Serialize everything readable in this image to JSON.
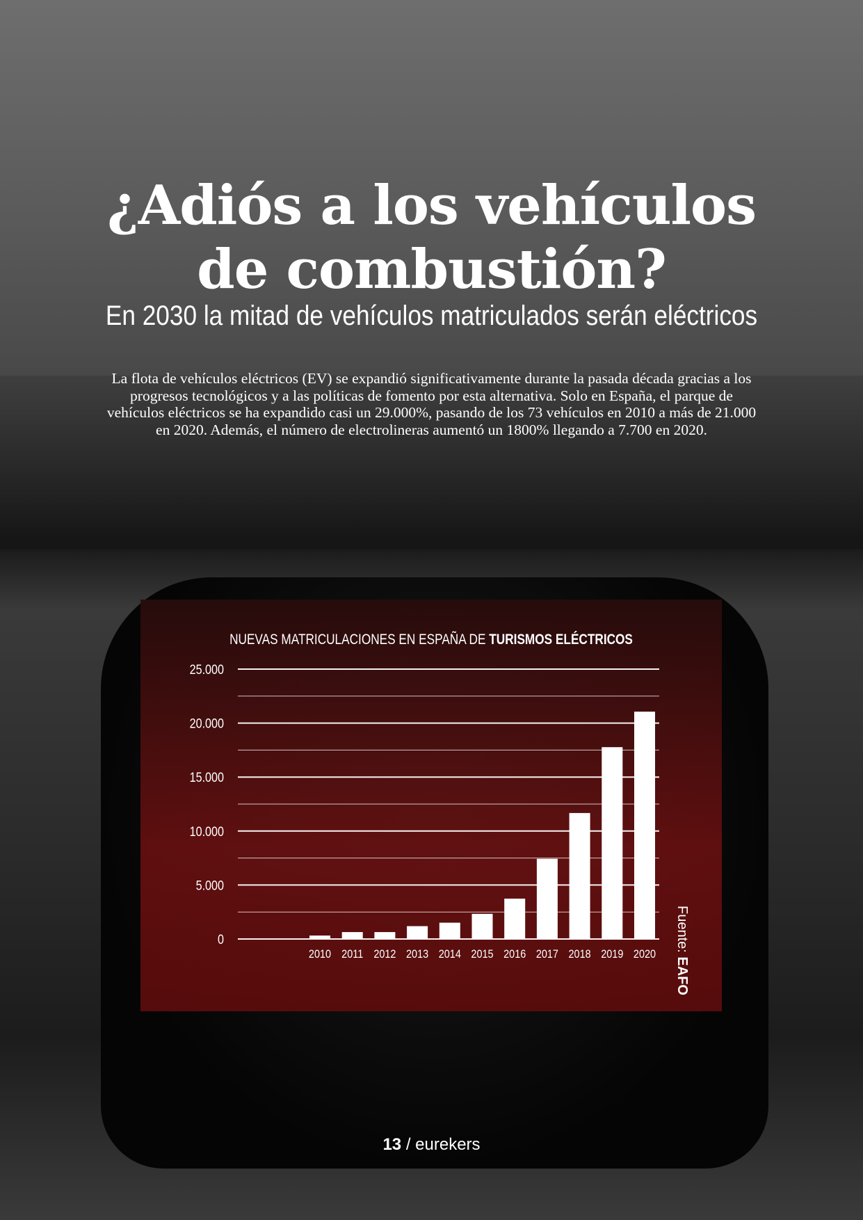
{
  "headline": {
    "line1": "¿Adiós a los vehículos",
    "line2": "de combustión?"
  },
  "subtitle": "En 2030 la mitad de vehículos matriculados serán eléctricos",
  "paragraph": "La flota de vehículos eléctricos (EV) se expandió significativamente durante la pasada década gracias a los progresos tecnológicos y a las políticas de fomento por esta alternativa. Solo en España, el parque de vehículos eléctricos se ha expandido casi un 29.000%, pasando de los 73 vehículos en 2010 a más de 21.000 en 2020. Además, el número de electrolineras aumentó un 1800% llegando a 7.700 en 2020.",
  "footer": {
    "page": "13",
    "sep": " / ",
    "brand": "eurekers"
  },
  "chart_data": {
    "type": "bar",
    "title": "NUEVAS MATRICULACIONES EN ESPAÑA DE",
    "title_bold": "TURISMOS ELÉCTRICOS",
    "categories": [
      "2010",
      "2011",
      "2012",
      "2013",
      "2014",
      "2015",
      "2016",
      "2017",
      "2018",
      "2019",
      "2020"
    ],
    "values": [
      320,
      640,
      640,
      1190,
      1510,
      2330,
      3740,
      7430,
      11670,
      17770,
      21060
    ],
    "ylim": [
      0,
      25000
    ],
    "yticks": [
      "0",
      "5.000",
      "10.000",
      "15.000",
      "20.000",
      "25.000"
    ],
    "grid": true,
    "source_label": "Fuente: ",
    "source": "EAFO",
    "colors": {
      "bar": "#ffffff",
      "panel": "#6e1010"
    }
  }
}
